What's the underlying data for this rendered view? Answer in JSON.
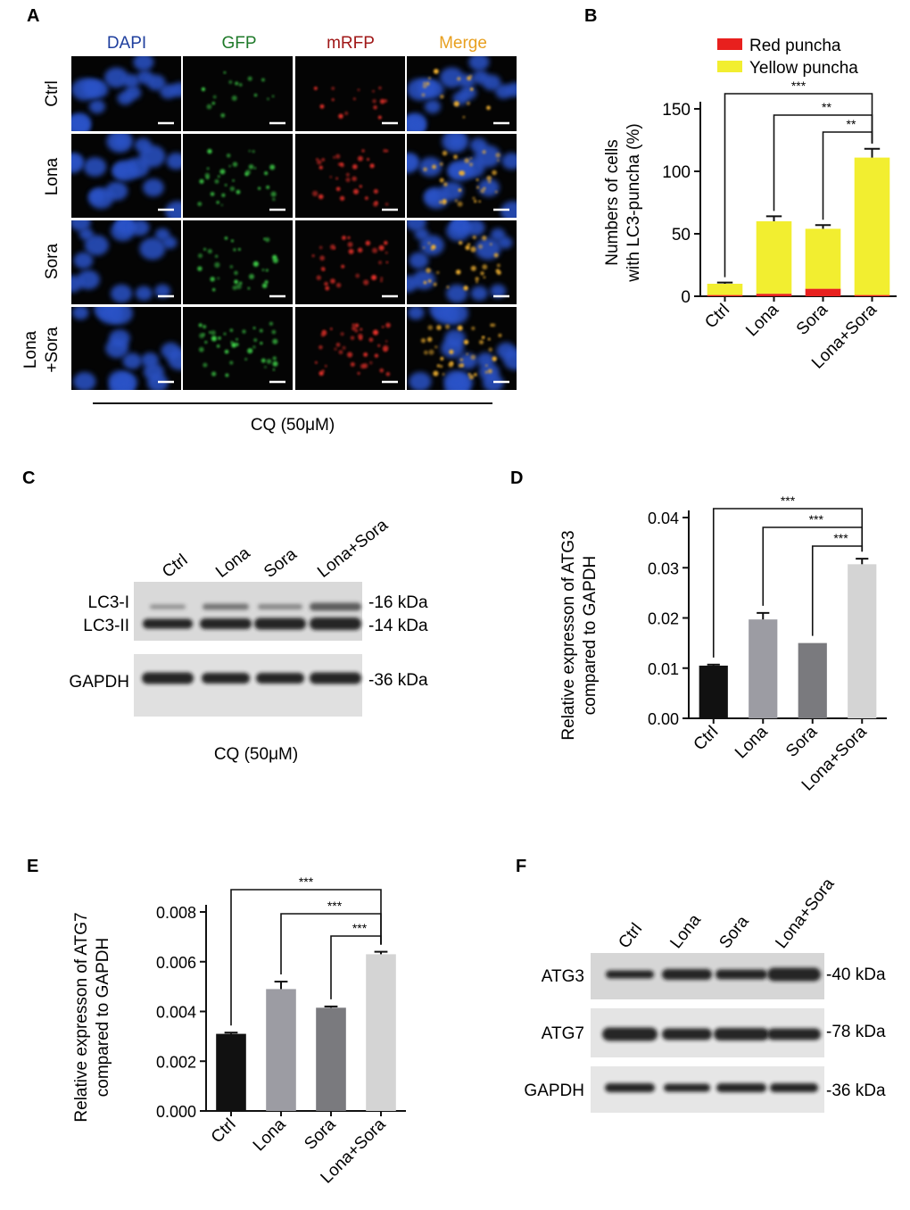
{
  "panel_letters": [
    "A",
    "B",
    "C",
    "D",
    "E",
    "F"
  ],
  "panel_a": {
    "columns": [
      {
        "label": "DAPI",
        "color": "#1f3f9e"
      },
      {
        "label": "GFP",
        "color": "#1f7a2a"
      },
      {
        "label": "mRFP",
        "color": "#a01818"
      },
      {
        "label": "Merge",
        "color": "#e8a020"
      }
    ],
    "rows": [
      {
        "label": "Ctrl",
        "lines": [
          "Ctrl"
        ]
      },
      {
        "label": "Lona",
        "lines": [
          "Lona"
        ]
      },
      {
        "label": "Sora",
        "lines": [
          "Sora"
        ]
      },
      {
        "label": "Lona +Sora",
        "lines": [
          "Lona",
          "+Sora"
        ]
      }
    ],
    "treatment": "CQ (50μM)"
  },
  "panel_c": {
    "lanes": [
      "Ctrl",
      "Lona",
      "Sora",
      "Lona+Sora"
    ],
    "bands": [
      "LC3-I",
      "LC3-II",
      "GAPDH"
    ],
    "sizes": [
      "-16 kDa",
      "-14 kDa",
      "-36 kDa"
    ],
    "treatment": "CQ (50μM)"
  },
  "panel_f": {
    "lanes": [
      "Ctrl",
      "Lona",
      "Sora",
      "Lona+Sora"
    ],
    "bands": [
      "ATG3",
      "ATG7",
      "GAPDH"
    ],
    "sizes": [
      "-40 kDa",
      "-78 kDa",
      "-36 kDa"
    ]
  },
  "colors": {
    "red_puncha": "#e8201e",
    "yellow_puncha": "#f2ee30",
    "ctrl_bar": "#111111",
    "lona_bar": "#9c9ca3",
    "sora_bar": "#7a7a7e",
    "combo_bar": "#d4d4d4"
  },
  "chart_data": [
    {
      "panel": "B",
      "type": "bar",
      "stacked": true,
      "categories": [
        "Ctrl",
        "Lona",
        "Sora",
        "Lona+Sora"
      ],
      "series": [
        {
          "name": "Red puncha",
          "values": [
            1,
            2,
            6,
            1
          ],
          "color": "#e8201e"
        },
        {
          "name": "Yellow puncha",
          "values": [
            9,
            58,
            48,
            110
          ],
          "color": "#f2ee30"
        }
      ],
      "totals": [
        10,
        60,
        54,
        111
      ],
      "errors": [
        1,
        4,
        3,
        7
      ],
      "ylabel": "Numbers of cells with LC3-puncha (%)",
      "ylabel_lines": [
        "Numbers of cells",
        "with LC3-puncha (%)"
      ],
      "ylim": [
        0,
        150
      ],
      "yticks": [
        "0",
        "50",
        "100",
        "150"
      ],
      "legend": "top",
      "significance": [
        {
          "from": 0,
          "to": 3,
          "label": "***"
        },
        {
          "from": 1,
          "to": 3,
          "label": "**"
        },
        {
          "from": 2,
          "to": 3,
          "label": "**"
        }
      ]
    },
    {
      "panel": "D",
      "type": "bar",
      "categories": [
        "Ctrl",
        "Lona",
        "Sora",
        "Lona+Sora"
      ],
      "values": [
        0.0105,
        0.0197,
        0.015,
        0.0307
      ],
      "errors": [
        0.0002,
        0.0013,
        0.0,
        0.0011
      ],
      "colors": [
        "#111111",
        "#9c9ca3",
        "#7a7a7e",
        "#d4d4d4"
      ],
      "ylabel": "Relative expresson of ATG3 compared to GAPDH",
      "ylabel_lines": [
        "Relative expresson of ATG3",
        "compared to GAPDH"
      ],
      "ylim": [
        0,
        0.04
      ],
      "yticks": [
        "0.00",
        "0.01",
        "0.02",
        "0.03",
        "0.04"
      ],
      "significance": [
        {
          "from": 0,
          "to": 3,
          "label": "***"
        },
        {
          "from": 1,
          "to": 3,
          "label": "***"
        },
        {
          "from": 2,
          "to": 3,
          "label": "***"
        }
      ]
    },
    {
      "panel": "E",
      "type": "bar",
      "categories": [
        "Ctrl",
        "Lona",
        "Sora",
        "Lona+Sora"
      ],
      "values": [
        0.0031,
        0.0049,
        0.00415,
        0.0063
      ],
      "errors": [
        5e-05,
        0.0003,
        5e-05,
        0.0001
      ],
      "colors": [
        "#111111",
        "#9c9ca3",
        "#7a7a7e",
        "#d4d4d4"
      ],
      "ylabel": "Relative expresson of ATG7 compared to GAPDH",
      "ylabel_lines": [
        "Relative expresson of ATG7",
        "compared to GAPDH"
      ],
      "ylim": [
        0,
        0.008
      ],
      "yticks": [
        "0.000",
        "0.002",
        "0.004",
        "0.006",
        "0.008"
      ],
      "significance": [
        {
          "from": 0,
          "to": 3,
          "label": "***"
        },
        {
          "from": 1,
          "to": 3,
          "label": "***"
        },
        {
          "from": 2,
          "to": 3,
          "label": "***"
        }
      ]
    }
  ]
}
